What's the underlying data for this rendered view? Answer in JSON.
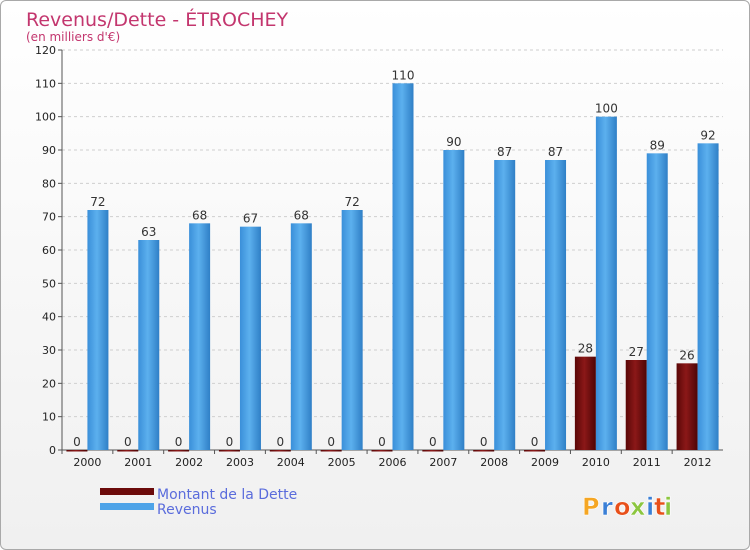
{
  "chart_data": {
    "type": "bar",
    "title": "Revenus/Dette - ÉTROCHEY",
    "subtitle": "(en milliers d'€)",
    "categories": [
      "2000",
      "2001",
      "2002",
      "2003",
      "2004",
      "2005",
      "2006",
      "2007",
      "2008",
      "2009",
      "2010",
      "2011",
      "2012"
    ],
    "series": [
      {
        "name": "Montant de la Dette",
        "color": "#6b0a0a",
        "values": [
          0,
          0,
          0,
          0,
          0,
          0,
          0,
          0,
          0,
          0,
          28,
          27,
          26
        ]
      },
      {
        "name": "Revenus",
        "color": "#4da3e8",
        "values": [
          72,
          63,
          68,
          67,
          68,
          72,
          110,
          90,
          87,
          87,
          100,
          89,
          92
        ]
      }
    ],
    "ylim": [
      0,
      120
    ],
    "yticks": [
      0,
      10,
      20,
      30,
      40,
      50,
      60,
      70,
      80,
      90,
      100,
      110,
      120
    ],
    "grid": true,
    "legend": "bottom-left"
  },
  "brand": {
    "logo_text": "Proxiti",
    "letter_colors": [
      "#f5a623",
      "#3a7fd6",
      "#e8501a",
      "#8cc63f",
      "#3a7fd6",
      "#e8501a",
      "#8cc63f"
    ]
  }
}
